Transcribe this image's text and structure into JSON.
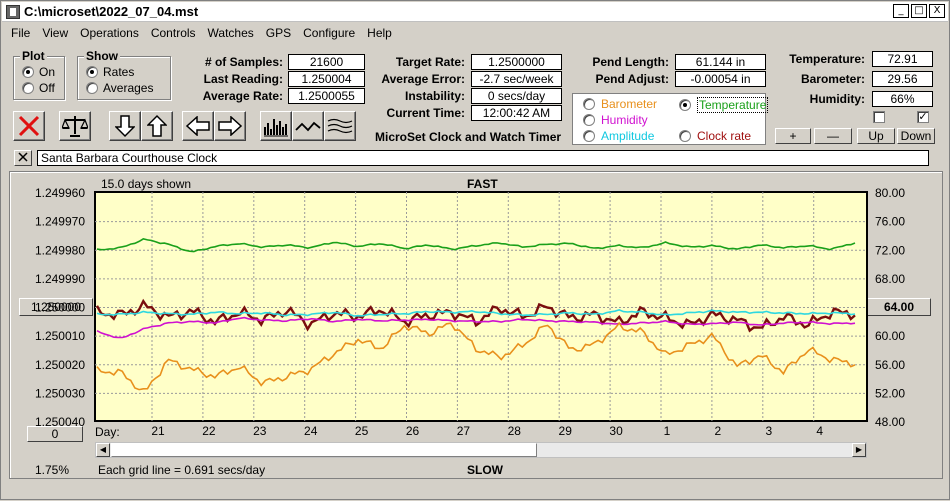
{
  "window": {
    "title": "C:\\microset\\2022_07_04.mst",
    "controls": [
      "_",
      "□",
      "X"
    ]
  },
  "menu": [
    "File",
    "View",
    "Operations",
    "Controls",
    "Watches",
    "GPS",
    "Configure",
    "Help"
  ],
  "plot_group": {
    "title": "Plot",
    "options": [
      "On",
      "Off"
    ],
    "selected": 0
  },
  "show_group": {
    "title": "Show",
    "options": [
      "Rates",
      "Averages"
    ],
    "selected": 0
  },
  "stats": {
    "samples_label": "# of Samples:",
    "samples": "21600",
    "last_reading_label": "Last Reading:",
    "last_reading": "1.250004",
    "average_rate_label": "Average Rate:",
    "average_rate": "1.2500055",
    "target_rate_label": "Target Rate:",
    "target_rate": "1.2500000",
    "average_error_label": "Average Error:",
    "average_error": "-2.7 sec/week",
    "instability_label": "Instability:",
    "instability": "0 secs/day",
    "current_time_label": "Current Time:",
    "current_time": "12:00:42 AM",
    "pend_length_label": "Pend Length:",
    "pend_length": "61.144 in",
    "pend_adjust_label": "Pend Adjust:",
    "pend_adjust": "-0.00054 in"
  },
  "app_caption": "MicroSet Clock and Watch Timer",
  "sensors": {
    "options": [
      {
        "label": "Barometer",
        "color": "#e8901c",
        "selected": false
      },
      {
        "label": "Temperature",
        "color": "#1aa01a",
        "selected": true
      },
      {
        "label": "Humidity",
        "color": "#d010d0",
        "selected": false
      },
      {
        "label": "Amplitude",
        "color": "#10d8e8",
        "selected": false
      },
      {
        "label": "Clock rate",
        "color": "#a01010",
        "selected": false
      }
    ]
  },
  "environment": {
    "temperature_label": "Temperature:",
    "temperature": "72.91",
    "barometer_label": "Barometer:",
    "barometer": "29.56",
    "humidity_label": "Humidity:",
    "humidity": "66%",
    "check1": false,
    "check2": true
  },
  "step_buttons": [
    "+",
    "—",
    "Up",
    "Down"
  ],
  "toolbar_icons": [
    "close-red-x-icon",
    "balance-scale-icon",
    "arrow-down-icon",
    "arrow-up-icon",
    "arrow-left-icon",
    "arrow-right-icon",
    "bar-histogram-icon",
    "wave-line-icon",
    "multi-wave-icon"
  ],
  "clock_name": "Santa Barbara Courthouse Clock",
  "chart_header": {
    "days_shown": "15.0 days shown",
    "top": "FAST",
    "bottom": "SLOW"
  },
  "chart_footer": {
    "grid_note": "Each grid line = 0.691 secs/day",
    "percent": "1.75%",
    "day_label": "Day:"
  },
  "left_buttons": {
    "center": "1.250000",
    "offset": "0"
  },
  "right_button": "64.00",
  "chart_data": {
    "type": "line",
    "x_categories": [
      "21",
      "22",
      "23",
      "24",
      "25",
      "26",
      "27",
      "28",
      "29",
      "30",
      "1",
      "2",
      "3",
      "4"
    ],
    "y_left_ticks": [
      "1.249960",
      "1.249970",
      "1.249980",
      "1.249990",
      "1.250000",
      "1.250010",
      "1.250020",
      "1.250030",
      "1.250040"
    ],
    "y_right_ticks": [
      "80.00",
      "76.00",
      "72.00",
      "68.00",
      "64.00",
      "60.00",
      "56.00",
      "52.00",
      "48.00"
    ],
    "ylim_right": [
      48,
      80
    ],
    "series": [
      {
        "name": "Temperature",
        "color": "#1aa01a",
        "y_right": [
          71.9,
          72.2,
          73.4,
          72.7,
          71.6,
          72.4,
          72.8,
          72.3,
          72.6,
          72.2,
          73.0,
          72.4,
          72.8,
          72.1,
          72.6,
          72.0,
          72.5,
          72.9,
          72.3,
          72.7,
          72.8,
          72.1,
          72.5,
          72.2,
          72.9,
          72.3,
          72.5,
          72.0,
          72.6,
          72.2,
          72.5,
          72.0,
          72.9
        ]
      },
      {
        "name": "Clock rate",
        "color": "#7a0e0e",
        "y_right": [
          63.2,
          62.8,
          64.1,
          62.5,
          63.4,
          61.8,
          63.2,
          62.1,
          63.5,
          61.5,
          63.1,
          62.6,
          63.6,
          61.9,
          62.8,
          63.2,
          61.9,
          63.8,
          62.6,
          64.0,
          62.4,
          62.9,
          61.7,
          63.3,
          62.4,
          61.4,
          62.9,
          62.1,
          60.9,
          62.6,
          61.4,
          63.2,
          63.0
        ]
      },
      {
        "name": "Amplitude",
        "color": "#2ed8e0",
        "y_right": [
          62.9,
          62.9,
          63.2,
          63.0,
          62.9,
          63.2,
          63.0,
          63.1,
          62.8,
          62.9,
          63.2,
          62.7,
          62.9,
          63.0,
          63.3,
          63.2,
          63.3,
          63.0,
          62.8,
          62.9,
          63.1,
          62.9,
          63.4,
          63.2,
          62.8,
          63.1,
          63.4,
          63.2,
          63.2,
          63.1,
          63.0,
          63.1,
          63.0
        ]
      },
      {
        "name": "Humidity",
        "color": "#d010d0",
        "y_right": [
          60.5,
          59.5,
          60.9,
          61.7,
          61.9,
          61.7,
          62.4,
          62.1,
          62.0,
          62.3,
          61.9,
          62.2,
          62.0,
          62.1,
          62.2,
          62.0,
          61.9,
          61.9,
          62.2,
          62.0,
          61.9,
          61.8,
          61.5,
          61.7,
          61.9,
          61.5,
          61.6,
          61.8,
          61.4,
          61.7,
          61.8,
          61.6,
          61.7
        ]
      },
      {
        "name": "Barometer",
        "color": "#e8901c",
        "y_right": [
          55.0,
          54.8,
          51.9,
          56.5,
          55.2,
          54.2,
          55.6,
          53.3,
          54.2,
          55.2,
          57.4,
          59.4,
          58.1,
          61.4,
          60.2,
          61.7,
          58.1,
          56.9,
          58.6,
          61.5,
          57.9,
          58.7,
          61.2,
          60.5,
          57.2,
          58.6,
          59.9,
          55.6,
          57.2,
          54.8,
          58.0,
          56.6,
          56.0
        ]
      }
    ]
  }
}
